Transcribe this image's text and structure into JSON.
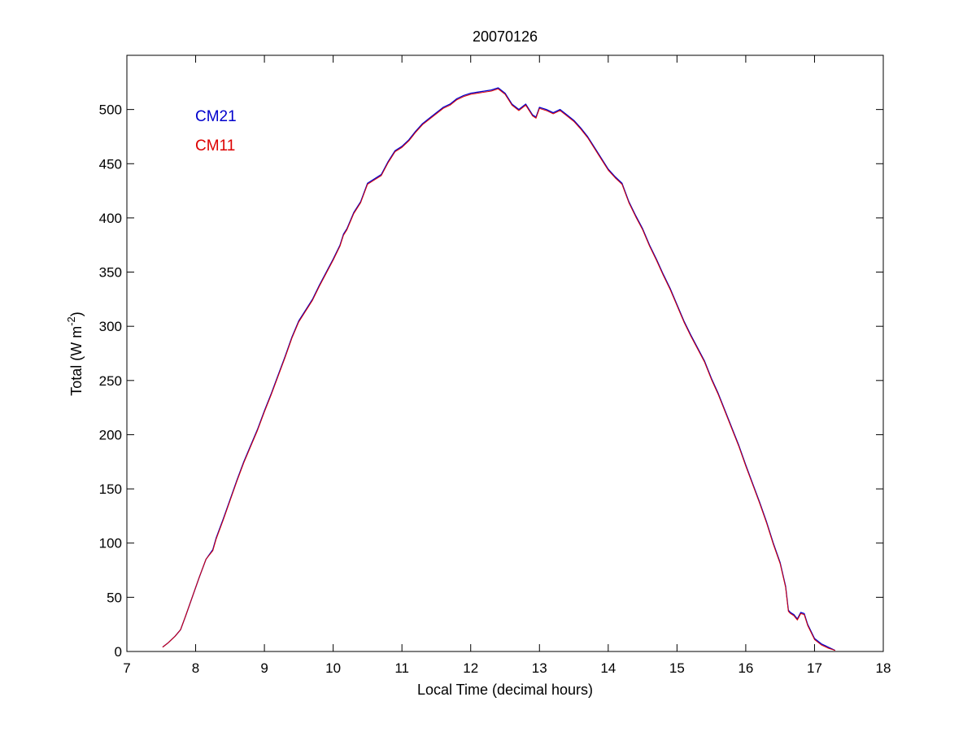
{
  "chart_data": {
    "type": "line",
    "title": "20070126",
    "xlabel": "Local Time (decimal hours)",
    "ylabel": {
      "prefix": "Total (W m",
      "superscript": "-2",
      "suffix": ")"
    },
    "xlim": [
      7,
      18
    ],
    "ylim": [
      0,
      550
    ],
    "xticks": [
      "7",
      "8",
      "9",
      "10",
      "11",
      "12",
      "13",
      "14",
      "15",
      "16",
      "17",
      "18"
    ],
    "yticks": [
      "0",
      "50",
      "100",
      "150",
      "200",
      "250",
      "300",
      "350",
      "400",
      "450",
      "500"
    ],
    "grid": false,
    "legend": {
      "placement": "top-left"
    },
    "series": [
      {
        "name": "CM21",
        "color": "#0000cc",
        "x": [
          7.52,
          7.6,
          7.7,
          7.78,
          7.85,
          7.95,
          8.05,
          8.15,
          8.25,
          8.3,
          8.4,
          8.5,
          8.6,
          8.7,
          8.8,
          8.9,
          9.0,
          9.1,
          9.2,
          9.3,
          9.4,
          9.5,
          9.6,
          9.7,
          9.8,
          9.9,
          10.0,
          10.1,
          10.15,
          10.2,
          10.3,
          10.4,
          10.5,
          10.6,
          10.7,
          10.8,
          10.9,
          11.0,
          11.1,
          11.2,
          11.3,
          11.4,
          11.5,
          11.6,
          11.7,
          11.8,
          11.9,
          12.0,
          12.1,
          12.2,
          12.3,
          12.4,
          12.5,
          12.6,
          12.7,
          12.8,
          12.9,
          12.95,
          13.0,
          13.1,
          13.2,
          13.3,
          13.4,
          13.5,
          13.6,
          13.7,
          13.8,
          13.9,
          14.0,
          14.1,
          14.2,
          14.3,
          14.4,
          14.5,
          14.6,
          14.7,
          14.8,
          14.9,
          15.0,
          15.1,
          15.2,
          15.3,
          15.4,
          15.5,
          15.6,
          15.7,
          15.8,
          15.9,
          16.0,
          16.1,
          16.2,
          16.3,
          16.4,
          16.5,
          16.58,
          16.62,
          16.65,
          16.7,
          16.75,
          16.8,
          16.85,
          16.9,
          17.0,
          17.1,
          17.2,
          17.3
        ],
        "values": [
          4,
          8,
          14,
          20,
          32,
          50,
          68,
          85,
          94,
          105,
          122,
          140,
          158,
          175,
          190,
          205,
          222,
          238,
          255,
          272,
          290,
          305,
          315,
          325,
          338,
          350,
          362,
          375,
          385,
          390,
          405,
          415,
          432,
          436,
          440,
          452,
          462,
          466,
          472,
          480,
          487,
          492,
          497,
          502,
          505,
          510,
          513,
          515,
          516,
          517,
          518,
          520,
          515,
          505,
          500,
          505,
          495,
          493,
          502,
          500,
          497,
          500,
          495,
          490,
          483,
          475,
          465,
          455,
          445,
          438,
          432,
          415,
          402,
          390,
          375,
          362,
          348,
          335,
          320,
          305,
          292,
          280,
          268,
          252,
          238,
          222,
          206,
          190,
          172,
          155,
          138,
          120,
          100,
          82,
          60,
          38,
          36,
          34,
          30,
          36,
          35,
          25,
          12,
          7,
          4,
          1
        ]
      },
      {
        "name": "CM11",
        "color": "#dd0000",
        "x": [
          7.52,
          7.6,
          7.7,
          7.78,
          7.85,
          7.95,
          8.05,
          8.15,
          8.25,
          8.3,
          8.4,
          8.5,
          8.6,
          8.7,
          8.8,
          8.9,
          9.0,
          9.1,
          9.2,
          9.3,
          9.4,
          9.5,
          9.6,
          9.7,
          9.8,
          9.9,
          10.0,
          10.1,
          10.15,
          10.2,
          10.3,
          10.4,
          10.5,
          10.6,
          10.7,
          10.8,
          10.9,
          11.0,
          11.1,
          11.2,
          11.3,
          11.4,
          11.5,
          11.6,
          11.7,
          11.8,
          11.9,
          12.0,
          12.1,
          12.2,
          12.3,
          12.4,
          12.5,
          12.6,
          12.7,
          12.8,
          12.9,
          12.95,
          13.0,
          13.1,
          13.2,
          13.3,
          13.4,
          13.5,
          13.6,
          13.7,
          13.8,
          13.9,
          14.0,
          14.1,
          14.2,
          14.3,
          14.4,
          14.5,
          14.6,
          14.7,
          14.8,
          14.9,
          15.0,
          15.1,
          15.2,
          15.3,
          15.4,
          15.5,
          15.6,
          15.7,
          15.8,
          15.9,
          16.0,
          16.1,
          16.2,
          16.3,
          16.4,
          16.5,
          16.58,
          16.62,
          16.65,
          16.7,
          16.75,
          16.8,
          16.85,
          16.9,
          17.0,
          17.1,
          17.2,
          17.3
        ],
        "values": [
          4,
          8,
          14,
          20,
          32,
          50,
          68,
          85,
          93,
          104,
          121,
          139,
          157,
          174,
          189,
          204,
          221,
          237,
          254,
          271,
          289,
          304,
          314,
          324,
          337,
          349,
          361,
          374,
          384,
          389,
          404,
          414,
          431,
          435,
          439,
          451,
          461,
          465,
          471,
          479,
          486,
          491,
          496,
          501,
          504,
          509,
          512,
          514,
          515,
          516,
          517,
          519,
          514,
          504,
          499,
          504,
          494,
          492,
          501,
          499,
          496,
          499,
          494,
          489,
          482,
          474,
          464,
          454,
          444,
          437,
          431,
          414,
          401,
          389,
          374,
          361,
          347,
          334,
          319,
          304,
          291,
          279,
          267,
          251,
          237,
          221,
          205,
          189,
          171,
          154,
          137,
          119,
          99,
          81,
          59,
          37,
          35,
          33,
          29,
          35,
          34,
          24,
          11,
          6,
          3,
          1
        ]
      }
    ]
  }
}
